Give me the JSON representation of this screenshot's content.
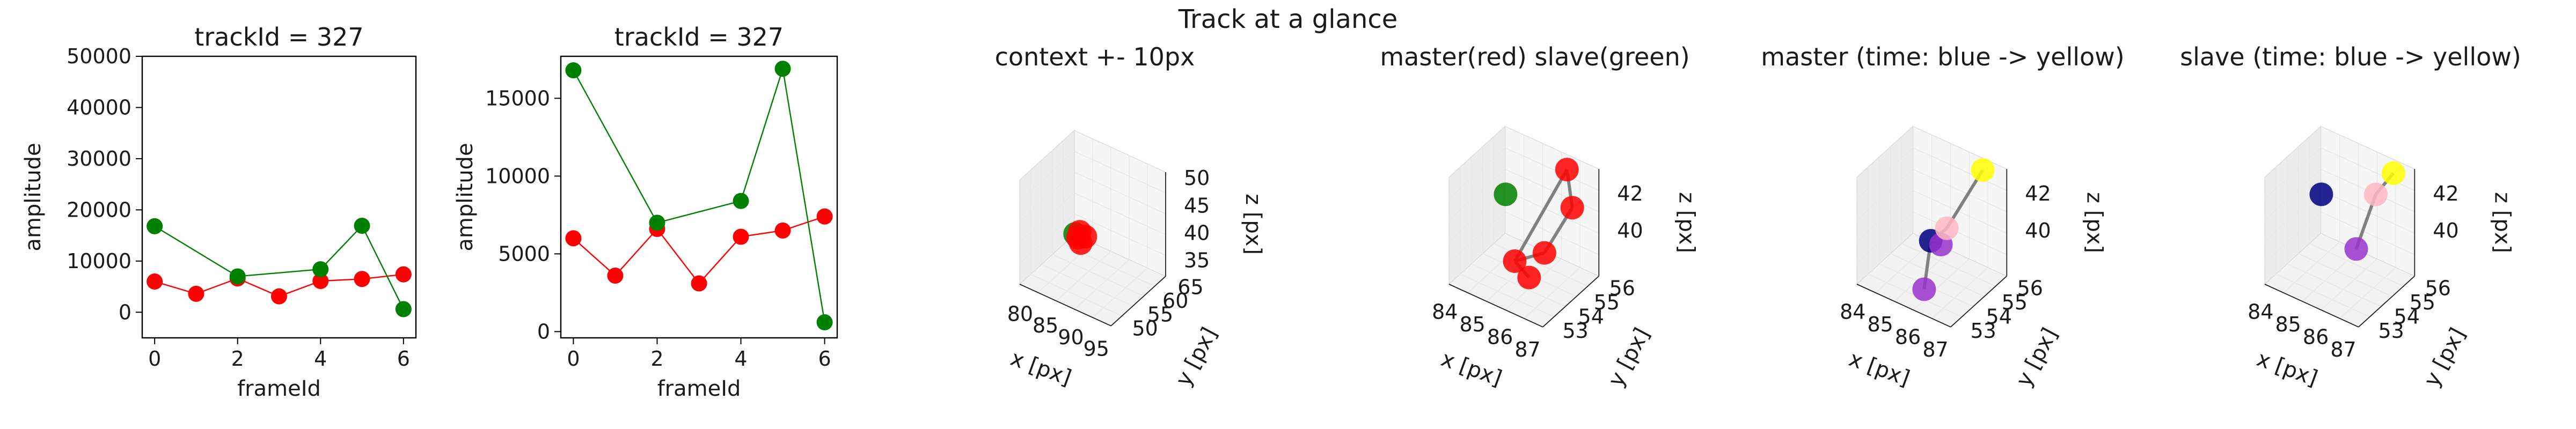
{
  "figure": {
    "suptitle": "Track at a glance"
  },
  "chart_data": [
    {
      "type": "line",
      "title": "trackId = 327",
      "xlabel": "frameId",
      "ylabel": "amplitude",
      "xlim": [
        -0.3,
        6.3
      ],
      "ylim": [
        -5000,
        50000
      ],
      "xticks": [
        "0",
        "2",
        "4",
        "6"
      ],
      "yticks": [
        "0",
        "10000",
        "20000",
        "30000",
        "40000",
        "50000"
      ],
      "series": [
        {
          "color": "#ff0000",
          "x": [
            0,
            1,
            2,
            3,
            4,
            5,
            6
          ],
          "values": [
            6000,
            3600,
            6600,
            3100,
            6100,
            6500,
            7400
          ]
        },
        {
          "color": "#008000",
          "x": [
            0,
            2,
            4,
            5,
            6
          ],
          "values": [
            16800,
            7000,
            8400,
            16900,
            600
          ]
        }
      ]
    },
    {
      "type": "line",
      "title": "trackId = 327",
      "xlabel": "frameId",
      "ylabel": "amplitude",
      "xlim": [
        -0.3,
        6.3
      ],
      "ylim": [
        -400,
        17700
      ],
      "xticks": [
        "0",
        "2",
        "4",
        "6"
      ],
      "yticks": [
        "0",
        "5000",
        "10000",
        "15000"
      ],
      "series": [
        {
          "color": "#ff0000",
          "x": [
            0,
            1,
            2,
            3,
            4,
            5,
            6
          ],
          "values": [
            6000,
            3600,
            6600,
            3100,
            6100,
            6500,
            7400
          ]
        },
        {
          "color": "#008000",
          "x": [
            0,
            2,
            4,
            5,
            6
          ],
          "values": [
            16800,
            7000,
            8400,
            16900,
            600
          ]
        }
      ]
    },
    {
      "type": "scatter",
      "title": "context +- 10px",
      "xlabel": "x [px]",
      "ylabel": "y [px]",
      "zlabel": "z [px]",
      "xticks": [
        "80",
        "85",
        "90",
        "95"
      ],
      "yticks": [
        "50",
        "55",
        "60",
        "65"
      ],
      "zticks": [
        "35",
        "40",
        "45",
        "50"
      ],
      "points": [
        {
          "color": "#008000",
          "x": 84.5,
          "y": 55.4,
          "z": 40.2
        },
        {
          "color": "#ff0000",
          "x": 85.9,
          "y": 54.0,
          "z": 40.8
        },
        {
          "color": "#ff0000",
          "x": 86.1,
          "y": 54.6,
          "z": 39.6
        },
        {
          "color": "#ff0000",
          "x": 85.6,
          "y": 55.1,
          "z": 41.2
        },
        {
          "color": "#ff0000",
          "x": 86.4,
          "y": 55.6,
          "z": 40.4
        }
      ]
    },
    {
      "type": "scatter",
      "title": "master(red) slave(green)",
      "xlabel": "x [px]",
      "ylabel": "y [px]",
      "zlabel": "z [px]",
      "xticks": [
        "84",
        "85",
        "86",
        "87"
      ],
      "yticks": [
        "53",
        "54",
        "55",
        "56"
      ],
      "zticks": [
        "40",
        "42"
      ],
      "points": [
        {
          "color": "#008000",
          "x": 84.1,
          "y": 55.8,
          "z": 40.2
        },
        {
          "color": "#ff0000",
          "x": 86.1,
          "y": 56.2,
          "z": 42.6
        },
        {
          "color": "#ff0000",
          "x": 86.8,
          "y": 55.3,
          "z": 41.7
        },
        {
          "color": "#ff0000",
          "x": 85.9,
          "y": 53.2,
          "z": 39.8
        },
        {
          "color": "#ff0000",
          "x": 86.3,
          "y": 54.4,
          "z": 39.6
        },
        {
          "color": "#ff0000",
          "x": 85.8,
          "y": 54.3,
          "z": 38.0
        }
      ]
    },
    {
      "type": "scatter",
      "title": "master (time: blue -> yellow)",
      "xlabel": "x [px]",
      "ylabel": "y [px]",
      "zlabel": "z [px]",
      "xticks": [
        "84",
        "85",
        "86",
        "87"
      ],
      "yticks": [
        "53",
        "54",
        "55",
        "56"
      ],
      "zticks": [
        "40",
        "42"
      ],
      "points": [
        {
          "color": "#000080",
          "x": 85.8,
          "y": 53.9,
          "z": 40.3
        },
        {
          "color": "#9932cc",
          "x": 86.0,
          "y": 54.2,
          "z": 40.0
        },
        {
          "color": "#9932cc",
          "x": 85.9,
          "y": 53.3,
          "z": 38.2
        },
        {
          "color": "#ffb6c1",
          "x": 86.1,
          "y": 54.4,
          "z": 40.8
        },
        {
          "color": "#ffff00",
          "x": 86.5,
          "y": 56.0,
          "z": 43.0
        }
      ]
    },
    {
      "type": "scatter",
      "title": "slave (time: blue -> yellow)",
      "xlabel": "x [px]",
      "ylabel": "y [px]",
      "zlabel": "z [px]",
      "xticks": [
        "84",
        "85",
        "86",
        "87"
      ],
      "yticks": [
        "53",
        "54",
        "55",
        "56"
      ],
      "zticks": [
        "40",
        "42"
      ],
      "points": [
        {
          "color": "#000080",
          "x": 84.1,
          "y": 55.8,
          "z": 40.2
        },
        {
          "color": "#9932cc",
          "x": 86.1,
          "y": 54.5,
          "z": 39.6
        },
        {
          "color": "#ffb6c1",
          "x": 86.3,
          "y": 55.4,
          "z": 42.0
        },
        {
          "color": "#ffff00",
          "x": 86.6,
          "y": 56.0,
          "z": 42.9
        }
      ]
    }
  ]
}
